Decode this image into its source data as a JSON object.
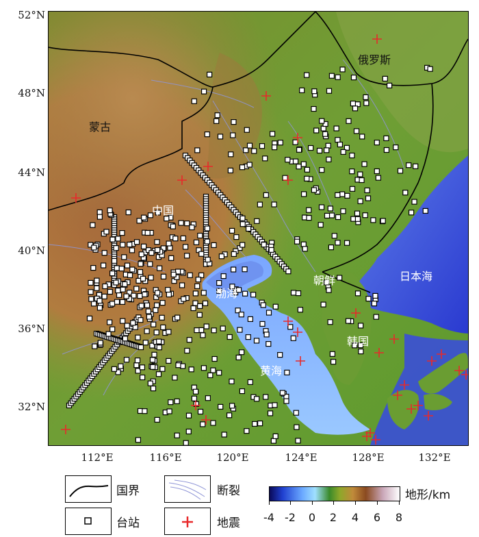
{
  "map": {
    "lat_labels": [
      "52°N",
      "48°N",
      "44°N",
      "40°N",
      "36°N",
      "32°N"
    ],
    "lon_labels": [
      "112°E",
      "116°E",
      "120°E",
      "124°E",
      "128°E",
      "132°E"
    ],
    "regions": {
      "russia": "俄罗斯",
      "mongolia": "蒙古",
      "china": "中国",
      "bohai": "渤海",
      "north_korea": "朝鲜",
      "sea_of_japan": "日本海",
      "korea": "韩国",
      "yellow_sea": "黄海"
    },
    "colors": {
      "land_low": "#5f9a2e",
      "land_high": "#9a6434",
      "sea": "#4a63d8",
      "border": "#000000",
      "fault": "#8f95d6",
      "station": "#ffffff",
      "earthquake": "#e8292a"
    }
  },
  "legend": {
    "border_label": "国界",
    "fault_label": "断裂",
    "station_label": "台站",
    "earthquake_label": "地震",
    "colorbar_title": "地形/km",
    "colorbar_ticks": [
      "-4",
      "-2",
      "0",
      "2",
      "4",
      "6",
      "8"
    ]
  }
}
